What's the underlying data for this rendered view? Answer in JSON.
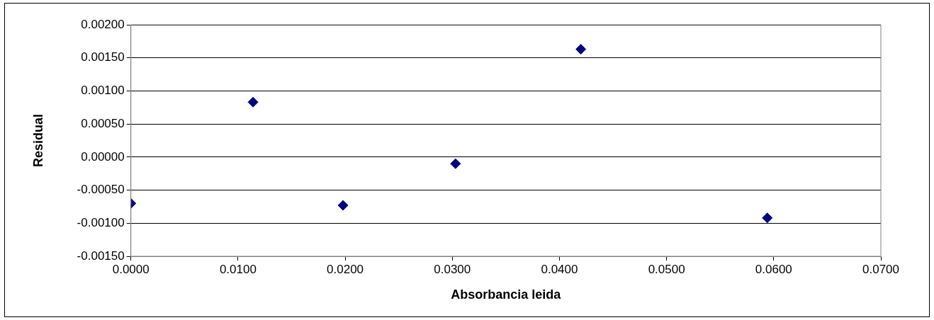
{
  "chart_data": {
    "type": "scatter",
    "xlabel": "Absorbancia leida",
    "ylabel": "Residual",
    "x": [
      0.0,
      0.0114,
      0.0198,
      0.0303,
      0.042,
      0.0594
    ],
    "series": [
      {
        "color": "#000080",
        "values": [
          -0.0007,
          0.00083,
          -0.00073,
          -0.0001,
          0.00163,
          -0.00092
        ]
      }
    ],
    "marker": "diamond",
    "grid": "y",
    "legend": false,
    "xlim": [
      0,
      0.07
    ],
    "xticks": [
      {
        "value": 0,
        "label": "0.0000"
      },
      {
        "value": 0.01,
        "label": "0.0100"
      },
      {
        "value": 0.02,
        "label": "0.0200"
      },
      {
        "value": 0.03,
        "label": "0.0300"
      },
      {
        "value": 0.04,
        "label": "0.0400"
      },
      {
        "value": 0.05,
        "label": "0.0500"
      },
      {
        "value": 0.06,
        "label": "0.0600"
      },
      {
        "value": 0.07,
        "label": "0.0700"
      }
    ],
    "ylim": [
      -0.0015,
      0.002
    ],
    "yticks": [
      {
        "value": -0.0015,
        "label": "-0.00150"
      },
      {
        "value": -0.001,
        "label": "-0.00100"
      },
      {
        "value": -0.0005,
        "label": "-0.00050"
      },
      {
        "value": 0,
        "label": "0.00000"
      },
      {
        "value": 0.0005,
        "label": "0.00050"
      },
      {
        "value": 0.001,
        "label": "0.00100"
      },
      {
        "value": 0.0015,
        "label": "0.00150"
      },
      {
        "value": 0.002,
        "label": "0.00200"
      }
    ]
  }
}
